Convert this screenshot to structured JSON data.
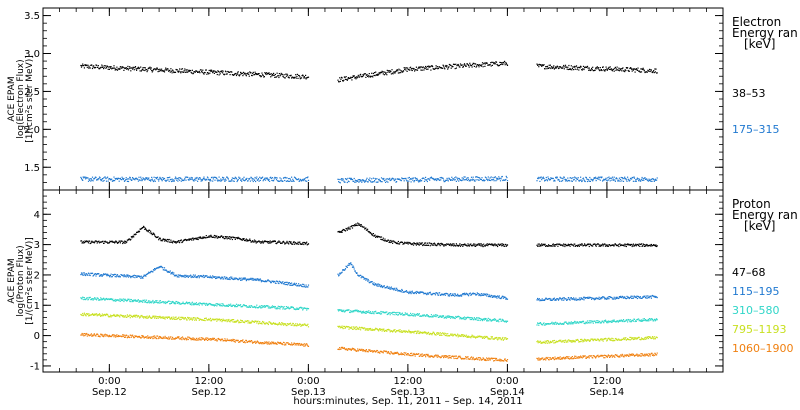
{
  "chart_data": [
    {
      "type": "scatter",
      "ylabel_lines": [
        "ACE EPAM",
        "log(Electron Flux)",
        "[1/(cm²s ster MeV)]"
      ],
      "ylim": [
        1.2,
        3.6
      ],
      "yticks": [
        1.5,
        2.0,
        2.5,
        3.0,
        3.5
      ],
      "ytick_labels": [
        "1.5",
        "2.0",
        "2.5",
        "3.0",
        "3.5"
      ],
      "legend_title_lines": [
        "Electron",
        "Energy ran",
        "[keV]"
      ],
      "series": [
        {
          "name": "38–53",
          "color": "#000000",
          "segments": [
            {
              "x": [
                -3.5,
                12,
                24
              ],
              "y": [
                2.84,
                2.76,
                2.7
              ]
            },
            {
              "x": [
                27.5,
                36,
                48
              ],
              "y": [
                2.66,
                2.8,
                2.88
              ]
            },
            {
              "x": [
                51.5,
                66
              ],
              "y": [
                2.84,
                2.78
              ]
            }
          ]
        },
        {
          "name": "175–315",
          "color": "#1f78d0",
          "segments": [
            {
              "x": [
                -3.5,
                24
              ],
              "y": [
                1.35,
                1.35
              ]
            },
            {
              "x": [
                27.5,
                48
              ],
              "y": [
                1.33,
                1.36
              ]
            },
            {
              "x": [
                51.5,
                66
              ],
              "y": [
                1.35,
                1.35
              ]
            }
          ]
        }
      ]
    },
    {
      "type": "scatter",
      "ylabel_lines": [
        "ACE EPAM",
        "log(Proton Flux)",
        "[1/(cm²s ster MeV)]"
      ],
      "ylim": [
        -1.2,
        4.8
      ],
      "yticks": [
        -1,
        0,
        1,
        2,
        3,
        4
      ],
      "ytick_labels": [
        "-1",
        "0",
        "1",
        "2",
        "3",
        "4"
      ],
      "legend_title_lines": [
        "Proton",
        "Energy ran",
        "[keV]"
      ],
      "series": [
        {
          "name": "47–68",
          "color": "#000000",
          "segments": [
            {
              "x": [
                -3.5,
                2,
                4,
                6,
                8,
                12,
                16,
                18,
                20,
                24
              ],
              "y": [
                3.1,
                3.1,
                3.6,
                3.2,
                3.1,
                3.3,
                3.2,
                3.1,
                3.1,
                3.05
              ]
            },
            {
              "x": [
                27.5,
                30,
                32,
                34,
                36,
                42,
                44,
                46,
                48
              ],
              "y": [
                3.4,
                3.7,
                3.3,
                3.1,
                3.05,
                3.0,
                3.0,
                3.0,
                3.0
              ]
            },
            {
              "x": [
                51.5,
                66
              ],
              "y": [
                3.0,
                3.0
              ]
            }
          ]
        },
        {
          "name": "115–195",
          "color": "#1f78d0",
          "segments": [
            {
              "x": [
                -3.5,
                4,
                6,
                8,
                12,
                18,
                24
              ],
              "y": [
                2.05,
                1.95,
                2.3,
                2.0,
                1.95,
                1.85,
                1.65
              ]
            },
            {
              "x": [
                27.5,
                29,
                30,
                32,
                36,
                42,
                44,
                48
              ],
              "y": [
                2.0,
                2.4,
                2.0,
                1.7,
                1.45,
                1.35,
                1.4,
                1.25
              ]
            },
            {
              "x": [
                51.5,
                66
              ],
              "y": [
                1.2,
                1.3
              ]
            }
          ]
        },
        {
          "name": "310–580",
          "color": "#2fd6c8",
          "segments": [
            {
              "x": [
                -3.5,
                12,
                24
              ],
              "y": [
                1.25,
                1.05,
                0.9
              ]
            },
            {
              "x": [
                27.5,
                36,
                48
              ],
              "y": [
                0.85,
                0.72,
                0.5
              ]
            },
            {
              "x": [
                51.5,
                66
              ],
              "y": [
                0.4,
                0.55
              ]
            }
          ]
        },
        {
          "name": "795–1193",
          "color": "#c8e020",
          "segments": [
            {
              "x": [
                -3.5,
                12,
                24
              ],
              "y": [
                0.72,
                0.55,
                0.35
              ]
            },
            {
              "x": [
                27.5,
                36,
                48
              ],
              "y": [
                0.3,
                0.15,
                -0.1
              ]
            },
            {
              "x": [
                51.5,
                66
              ],
              "y": [
                -0.2,
                -0.05
              ]
            }
          ]
        },
        {
          "name": "1060–1900",
          "color": "#f08010",
          "segments": [
            {
              "x": [
                -3.5,
                12,
                24
              ],
              "y": [
                0.05,
                -0.1,
                -0.3
              ]
            },
            {
              "x": [
                27.5,
                36,
                48
              ],
              "y": [
                -0.4,
                -0.6,
                -0.8
              ]
            },
            {
              "x": [
                51.5,
                66
              ],
              "y": [
                -0.75,
                -0.6
              ]
            }
          ]
        }
      ]
    }
  ],
  "x_axis": {
    "xlim": [
      -8,
      74
    ],
    "major_ticks": [
      0,
      12,
      24,
      36,
      48,
      60
    ],
    "tick_time_labels": [
      "0:00",
      "12:00",
      "0:00",
      "12:00",
      "0:00",
      "12:00"
    ],
    "tick_date_labels": [
      "Sep.12",
      "Sep.12",
      "Sep.13",
      "Sep.13",
      "Sep.14",
      "Sep.14"
    ],
    "xlabel": "hours:minutes, Sep. 11, 2011 – Sep. 14, 2011"
  }
}
